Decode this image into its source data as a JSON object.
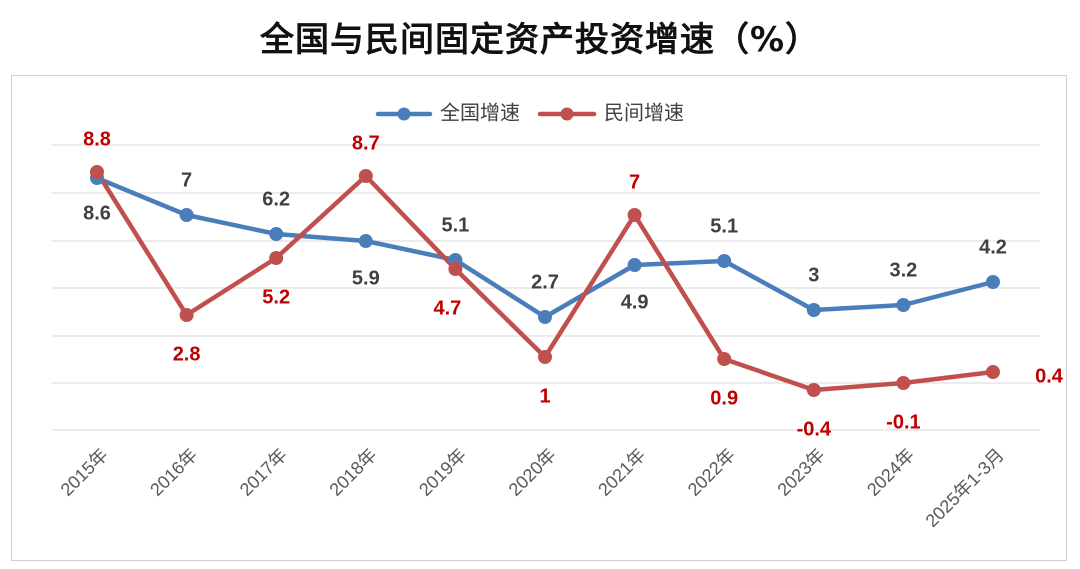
{
  "title": "全国与民间固定资产投资增速（%）",
  "chart_data": {
    "type": "line",
    "categories": [
      "2015年",
      "2016年",
      "2017年",
      "2018年",
      "2019年",
      "2020年",
      "2021年",
      "2022年",
      "2023年",
      "2024年",
      "2025年1-3月"
    ],
    "series": [
      {
        "name": "全国增速",
        "color": "#4a7ebb",
        "values": [
          8.6,
          7,
          6.2,
          5.9,
          5.1,
          2.7,
          4.9,
          5.1,
          3,
          3.2,
          4.2
        ]
      },
      {
        "name": "民间增速",
        "color": "#c0504d",
        "values": [
          8.8,
          2.8,
          5.2,
          8.7,
          4.7,
          1,
          7,
          0.9,
          -0.4,
          -0.1,
          0.4
        ]
      }
    ],
    "legend": "top",
    "grid": true
  }
}
